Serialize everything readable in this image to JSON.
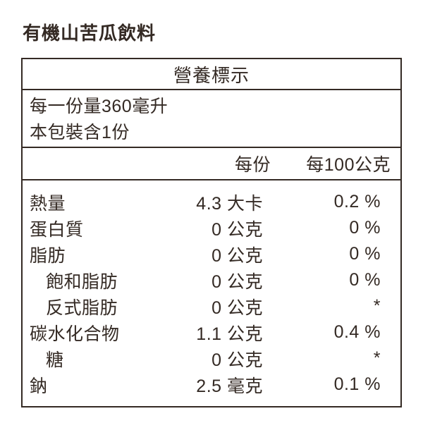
{
  "page_title": "有機山苦瓜飲料",
  "panel": {
    "header": "營養標示",
    "serving": {
      "per_serving_line": "每一份量360毫升",
      "servings_per_package_line": "本包裝含1份"
    },
    "columns": {
      "per_serving": "每份",
      "per_100g": "每100公克"
    },
    "rows": [
      {
        "name": "熱量",
        "indent": false,
        "amount": "4.3 大卡",
        "dv": "0.2 %"
      },
      {
        "name": "蛋白質",
        "indent": false,
        "amount": "0 公克",
        "dv": "0 %"
      },
      {
        "name": "脂肪",
        "indent": false,
        "amount": "0 公克",
        "dv": "0 %"
      },
      {
        "name": "飽和脂肪",
        "indent": true,
        "amount": "0 公克",
        "dv": "0 %"
      },
      {
        "name": "反式脂肪",
        "indent": true,
        "amount": "0 公克",
        "dv": "*"
      },
      {
        "name": "碳水化合物",
        "indent": false,
        "amount": "1.1 公克",
        "dv": "0.4 %"
      },
      {
        "name": "糖",
        "indent": true,
        "amount": "0 公克",
        "dv": "*"
      },
      {
        "name": "鈉",
        "indent": false,
        "amount": "2.5 毫克",
        "dv": "0.1 %"
      }
    ],
    "colors": {
      "text": "#342a24",
      "border": "#342a24",
      "background": "#ffffff"
    }
  }
}
